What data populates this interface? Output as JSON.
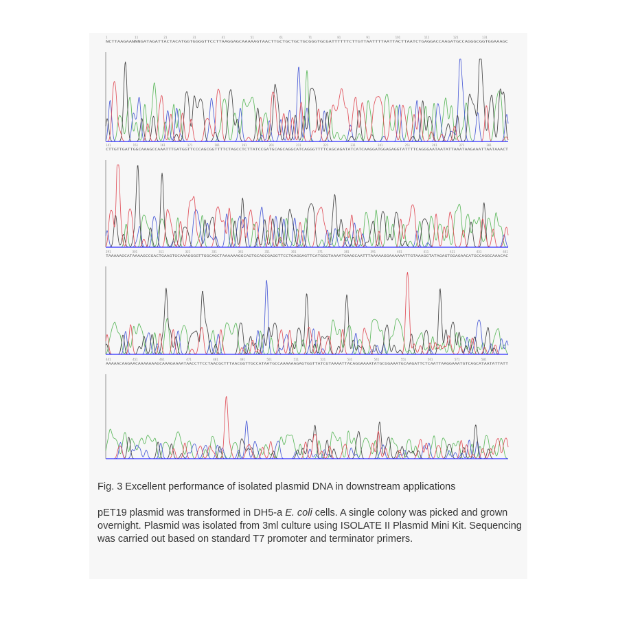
{
  "figure": {
    "caption_title": "Fig. 3 Excellent performance of isolated plasmid DNA in downstream applications",
    "caption_body": {
      "part1": "pET19 plasmid was transformed in DH5-a ",
      "species": "E. coli",
      "part2": " cells. A single colony was picked and grown overnight. Plasmid was isolated from 3ml culture using ISOLATE II Plasmid Mini Kit. Sequencing was carried out based on standard T7 promoter and terminator primers."
    }
  },
  "chart_data": {
    "type": "line",
    "description_free": true,
    "bases": [
      "A",
      "C",
      "G",
      "T"
    ],
    "colors": {
      "A": "#5cb85c",
      "C": "#4a5bd6",
      "G": "#444444",
      "T": "#e0505a",
      "baseline": "#2c2cff"
    },
    "panels": [
      {
        "start_position": 1,
        "sequence": "NCTTAAGAANNNGATAGATTACTACATGGTGGGGTTCCTTAAGGAGCAAAAAGTAACTTGCTGCTGCTGCGGGTGCGATTTTTTCTTGTTAATTTTAATTACTTAATCTGAGGACCAAGATGCCAGGGCGGTGGAAAGC",
        "tallest_peaks": [
          [
            0.05,
            0.55
          ],
          [
            0.12,
            0.52
          ],
          [
            0.42,
            0.55
          ],
          [
            0.48,
            0.56
          ],
          [
            0.5,
            0.75
          ],
          [
            0.88,
            0.56
          ],
          [
            0.93,
            0.52
          ],
          [
            0.98,
            0.52
          ]
        ],
        "ymax": 100
      },
      {
        "start_position": 141,
        "sequence": "CTTGTTGATTGGCAAAGCCAAATTTGATGGTTCCCAGCGGTTTTCTAGCCTCTTATCCGATGCAGCAGGCATCAGGGTTTTCAGCAGATATCATCAAGGATGGAGAGGTATTTTCAGGGAATAATATTAAATAAGAAATTAATAAACT",
        "tallest_peaks": [
          [
            0.03,
            0.72
          ],
          [
            0.08,
            0.72
          ],
          [
            0.14,
            0.78
          ],
          [
            0.22,
            0.47
          ],
          [
            0.34,
            0.52
          ],
          [
            0.57,
            0.48
          ],
          [
            0.94,
            0.47
          ]
        ],
        "ymax": 100
      },
      {
        "start_position": 291,
        "sequence": "TAAAAAGCATAAAAGCCGACTGAAGTGCAAAGGGGTTGGCAGCTAAAAAAGGCAGTGCAGCGAGGTTCCTGAGGAGTTCATGGGTAAAATGAAGCAATTTAAAAAGGAAAAAATTGTAAAGGTATAGAGTGGAGAACATGCCAGGCAAACAC",
        "tallest_peaks": [
          [
            0.15,
            0.68
          ],
          [
            0.24,
            0.62
          ],
          [
            0.4,
            0.65
          ],
          [
            0.5,
            0.52
          ],
          [
            0.6,
            0.52
          ],
          [
            0.75,
            0.5
          ],
          [
            0.83,
            0.45
          ]
        ],
        "ymax": 100
      },
      {
        "start_position": 441,
        "sequence": "AAAAACAAGAACAAAAAAAGCAAAGAAAATAACCTTCCTAACGCTTTAACGGTTGCCATAATGCCAAAAAAGAGTGGTTATCGTAAAATTACAGGAAAATATGCGGAAATGCAAGATTCTCAATTAAGGAAATGTCAGCATAATATTATT",
        "tallest_peaks": [
          [
            0.3,
            0.45
          ],
          [
            0.35,
            0.4
          ],
          [
            0.52,
            0.35
          ],
          [
            0.68,
            0.33
          ],
          [
            0.92,
            0.3
          ]
        ],
        "ymax": 100
      }
    ]
  }
}
